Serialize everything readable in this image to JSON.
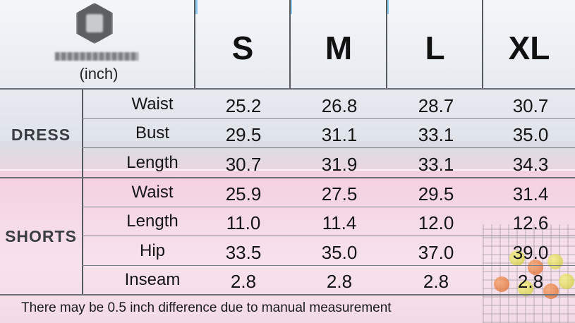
{
  "header": {
    "unit": "(inch)",
    "sizes": [
      "S",
      "M",
      "L",
      "XL"
    ]
  },
  "dress": {
    "label": "DRESS",
    "rows": [
      {
        "measure": "Waist",
        "values": [
          "25.2",
          "26.8",
          "28.7",
          "30.7"
        ]
      },
      {
        "measure": "Bust",
        "values": [
          "29.5",
          "31.1",
          "33.1",
          "35.0"
        ]
      },
      {
        "measure": "Length",
        "values": [
          "30.7",
          "31.9",
          "33.1",
          "34.3"
        ]
      }
    ]
  },
  "shorts": {
    "label": "SHORTS",
    "rows": [
      {
        "measure": "Waist",
        "values": [
          "25.9",
          "27.5",
          "29.5",
          "31.4"
        ]
      },
      {
        "measure": "Length",
        "values": [
          "11.0",
          "11.4",
          "12.0",
          "12.6"
        ]
      },
      {
        "measure": "Hip",
        "values": [
          "33.5",
          "35.0",
          "37.0",
          "39.0"
        ]
      },
      {
        "measure": "Inseam",
        "values": [
          "2.8",
          "2.8",
          "2.8",
          "2.8"
        ]
      }
    ]
  },
  "footnote": "There may be 0.5 inch difference due to manual measurement",
  "colors": {
    "pink": "#f3cfe0",
    "grid": "#555a61",
    "sky_accent": "#8ec9ee"
  },
  "icons": {
    "logo": "brand-hexagon-logo"
  }
}
